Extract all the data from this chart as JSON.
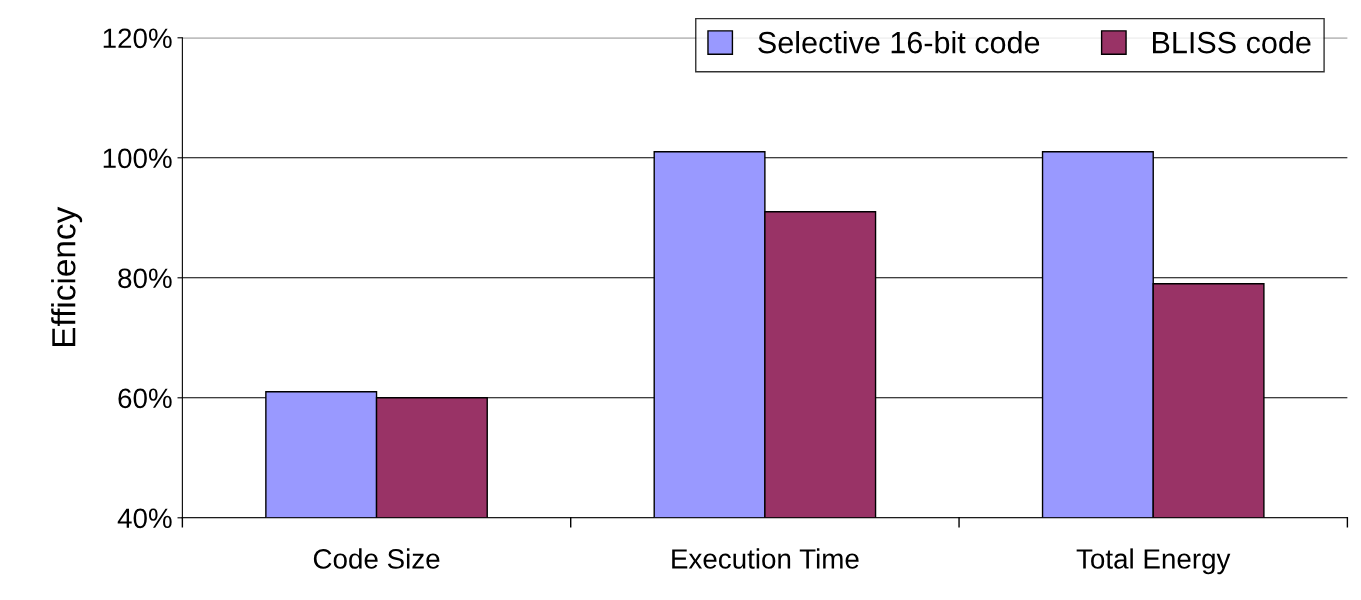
{
  "chart_data": {
    "type": "bar",
    "ylabel": "Efficiency",
    "categories": [
      "Code Size",
      "Execution Time",
      "Total Energy"
    ],
    "series": [
      {
        "name": "Selective 16-bit code",
        "color": "#9999ff",
        "values": [
          61,
          101,
          101
        ]
      },
      {
        "name": "BLISS code",
        "color": "#993366",
        "values": [
          60,
          91,
          79
        ]
      }
    ],
    "ylim": [
      40,
      120
    ],
    "yticks": [
      {
        "value": 40,
        "label": "40%"
      },
      {
        "value": 60,
        "label": "60%"
      },
      {
        "value": 80,
        "label": "80%"
      },
      {
        "value": 100,
        "label": "100%"
      },
      {
        "value": 120,
        "label": "120%"
      }
    ],
    "grid": "y",
    "legend": "top right"
  }
}
